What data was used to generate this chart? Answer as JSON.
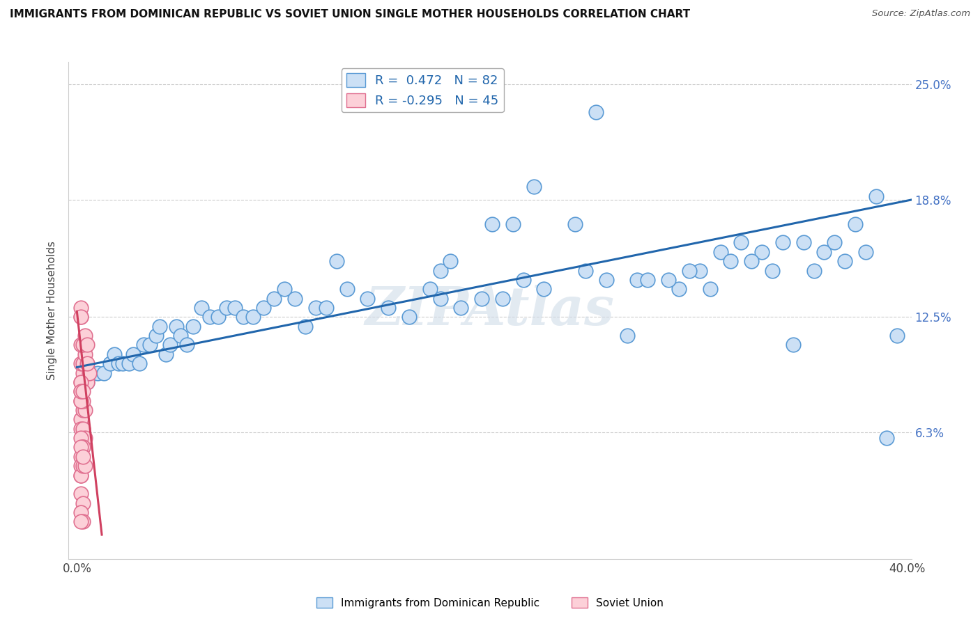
{
  "title": "IMMIGRANTS FROM DOMINICAN REPUBLIC VS SOVIET UNION SINGLE MOTHER HOUSEHOLDS CORRELATION CHART",
  "source": "Source: ZipAtlas.com",
  "ylabel": "Single Mother Households",
  "xlabel_blue": "Immigrants from Dominican Republic",
  "xlabel_pink": "Soviet Union",
  "legend_blue_r": "R =  0.472",
  "legend_blue_n": "N = 82",
  "legend_pink_r": "R = -0.295",
  "legend_pink_n": "N = 45",
  "xlim": [
    -0.004,
    0.402
  ],
  "ylim": [
    -0.005,
    0.262
  ],
  "yticks": [
    0.0,
    0.063,
    0.125,
    0.188,
    0.25
  ],
  "ytick_labels": [
    "",
    "6.3%",
    "12.5%",
    "18.8%",
    "25.0%"
  ],
  "xticks": [
    0.0,
    0.4
  ],
  "xtick_labels": [
    "0.0%",
    "40.0%"
  ],
  "watermark": "ZIPAtlas",
  "background_color": "#ffffff",
  "blue_dot_face": "#cce0f5",
  "blue_dot_edge": "#5b9bd5",
  "pink_dot_face": "#fcd0d8",
  "pink_dot_edge": "#e07090",
  "blue_line_color": "#2166ac",
  "pink_line_color": "#d04060",
  "grid_color": "#cccccc",
  "blue_scatter_x": [
    0.005,
    0.007,
    0.01,
    0.013,
    0.016,
    0.018,
    0.02,
    0.022,
    0.025,
    0.027,
    0.03,
    0.032,
    0.035,
    0.038,
    0.04,
    0.043,
    0.045,
    0.048,
    0.05,
    0.053,
    0.056,
    0.06,
    0.064,
    0.068,
    0.072,
    0.076,
    0.08,
    0.085,
    0.09,
    0.095,
    0.1,
    0.105,
    0.11,
    0.115,
    0.12,
    0.125,
    0.13,
    0.14,
    0.15,
    0.16,
    0.17,
    0.175,
    0.18,
    0.2,
    0.21,
    0.22,
    0.24,
    0.25,
    0.27,
    0.29,
    0.3,
    0.31,
    0.32,
    0.33,
    0.34,
    0.35,
    0.36,
    0.37,
    0.38,
    0.385,
    0.175,
    0.185,
    0.195,
    0.205,
    0.215,
    0.225,
    0.245,
    0.255,
    0.265,
    0.275,
    0.285,
    0.295,
    0.305,
    0.315,
    0.325,
    0.335,
    0.345,
    0.355,
    0.365,
    0.375,
    0.39,
    0.395
  ],
  "blue_scatter_y": [
    0.09,
    0.095,
    0.095,
    0.095,
    0.1,
    0.105,
    0.1,
    0.1,
    0.1,
    0.105,
    0.1,
    0.11,
    0.11,
    0.115,
    0.12,
    0.105,
    0.11,
    0.12,
    0.115,
    0.11,
    0.12,
    0.13,
    0.125,
    0.125,
    0.13,
    0.13,
    0.125,
    0.125,
    0.13,
    0.135,
    0.14,
    0.135,
    0.12,
    0.13,
    0.13,
    0.155,
    0.14,
    0.135,
    0.13,
    0.125,
    0.14,
    0.15,
    0.155,
    0.175,
    0.175,
    0.195,
    0.175,
    0.235,
    0.145,
    0.14,
    0.15,
    0.16,
    0.165,
    0.16,
    0.165,
    0.165,
    0.16,
    0.155,
    0.16,
    0.19,
    0.135,
    0.13,
    0.135,
    0.135,
    0.145,
    0.14,
    0.15,
    0.145,
    0.115,
    0.145,
    0.145,
    0.15,
    0.14,
    0.155,
    0.155,
    0.15,
    0.11,
    0.15,
    0.165,
    0.175,
    0.06,
    0.115
  ],
  "pink_scatter_x": [
    0.002,
    0.003,
    0.004,
    0.005,
    0.006,
    0.002,
    0.003,
    0.004,
    0.005,
    0.002,
    0.003,
    0.004,
    0.005,
    0.002,
    0.003,
    0.004,
    0.002,
    0.003,
    0.004,
    0.002,
    0.003,
    0.002,
    0.003,
    0.002,
    0.003,
    0.002,
    0.002,
    0.002,
    0.002,
    0.002,
    0.003,
    0.004,
    0.002,
    0.003,
    0.002,
    0.003,
    0.002,
    0.002,
    0.002,
    0.002,
    0.002,
    0.002,
    0.003,
    0.002,
    0.003
  ],
  "pink_scatter_y": [
    0.09,
    0.095,
    0.09,
    0.09,
    0.095,
    0.1,
    0.1,
    0.105,
    0.1,
    0.11,
    0.11,
    0.115,
    0.11,
    0.07,
    0.075,
    0.075,
    0.065,
    0.065,
    0.06,
    0.06,
    0.055,
    0.05,
    0.055,
    0.08,
    0.08,
    0.085,
    0.08,
    0.04,
    0.045,
    0.04,
    0.045,
    0.045,
    0.03,
    0.025,
    0.02,
    0.015,
    0.015,
    0.125,
    0.13,
    0.125,
    0.09,
    0.085,
    0.085,
    0.055,
    0.05
  ],
  "blue_trend_x": [
    0.0,
    0.402
  ],
  "blue_trend_y": [
    0.098,
    0.188
  ],
  "pink_trend_x": [
    0.0,
    0.012
  ],
  "pink_trend_y": [
    0.128,
    0.008
  ]
}
